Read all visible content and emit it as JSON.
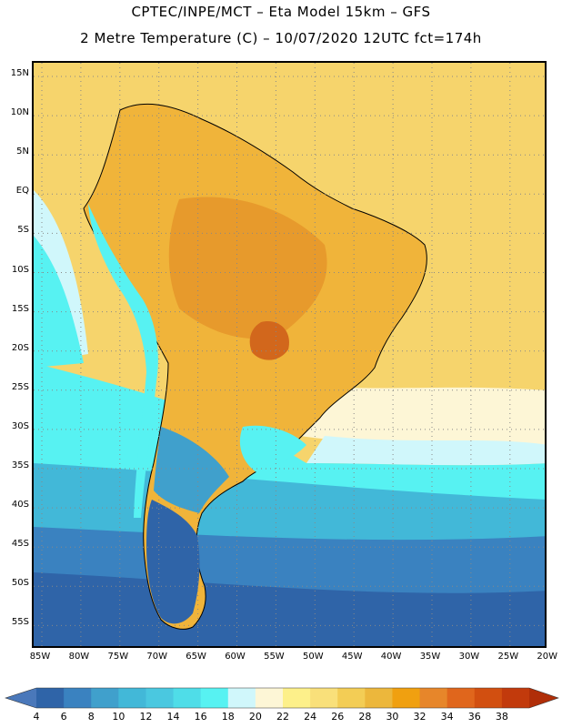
{
  "title_line1": "CPTEC/INPE/MCT –  Eta Model 15km – GFS",
  "title_line2": "2 Metre Temperature (C) – 10/07/2020 12UTC fct=174h",
  "colors": {
    "land_hot": "#e79a2c",
    "land_warm": "#f0b43a",
    "ocean_warm": "#f6d46c",
    "ocean_mild": "#fdf6c6",
    "cool": "#4fe6ee",
    "cold": "#36b6d8",
    "very_cold": "#2a5ea8",
    "coast": "#000000"
  },
  "lat_labels": [
    "15N",
    "10N",
    "5N",
    "EQ",
    "5S",
    "10S",
    "15S",
    "20S",
    "25S",
    "30S",
    "35S",
    "40S",
    "45S",
    "50S",
    "55S"
  ],
  "lon_labels": [
    "85W",
    "80W",
    "75W",
    "70W",
    "65W",
    "60W",
    "55W",
    "50W",
    "45W",
    "40W",
    "35W",
    "30W",
    "25W",
    "20W"
  ],
  "colorbar": {
    "labels": [
      "4",
      "6",
      "8",
      "10",
      "12",
      "14",
      "16",
      "18",
      "20",
      "22",
      "24",
      "26",
      "28",
      "30",
      "32",
      "34",
      "36",
      "38"
    ],
    "colors": [
      "#4a78ba",
      "#2f64a8",
      "#3a82c0",
      "#40a0cc",
      "#42b8d8",
      "#4ac8e0",
      "#4fdde8",
      "#57f2f2",
      "#d0f7fb",
      "#fdf6d6",
      "#fdf08a",
      "#f9e07a",
      "#f3cd55",
      "#ecb73c",
      "#f0a010",
      "#e7862a",
      "#e0661c",
      "#d24f10",
      "#c23a0c",
      "#b02e08"
    ]
  }
}
